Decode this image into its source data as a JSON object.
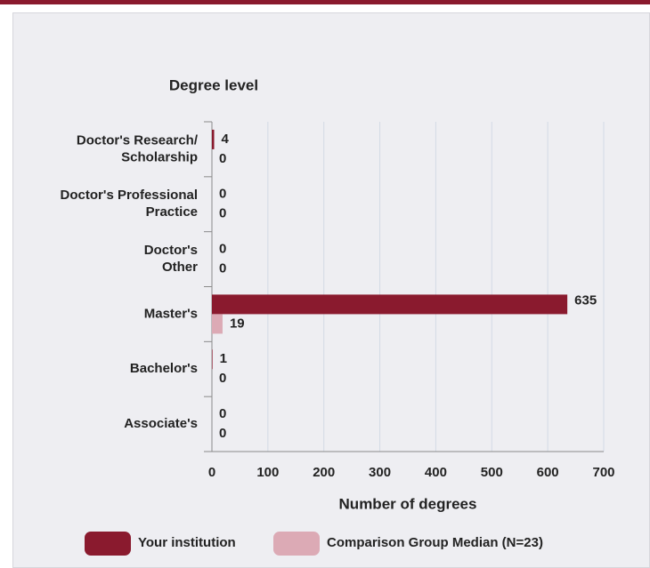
{
  "chart_data": {
    "type": "hbar",
    "title": "Degree level",
    "categories": [
      [
        "Doctor's Research/",
        "Scholarship"
      ],
      [
        "Doctor's Professional",
        "Practice"
      ],
      [
        "Doctor's",
        "Other"
      ],
      [
        "Master's"
      ],
      [
        "Bachelor's"
      ],
      [
        "Associate's"
      ]
    ],
    "series": [
      {
        "name": "Your institution",
        "color": "#8a1a2e",
        "values": [
          4,
          0,
          0,
          635,
          1,
          0
        ]
      },
      {
        "name": "Comparison Group Median (N=23)",
        "color": "#dcaab5",
        "values": [
          0,
          0,
          0,
          19,
          0,
          0
        ]
      }
    ],
    "xlim": [
      0,
      700
    ],
    "xticks": [
      0,
      100,
      200,
      300,
      400,
      500,
      600,
      700
    ],
    "xlabel": "Number of degrees",
    "grid": true,
    "legend": "bottom"
  }
}
